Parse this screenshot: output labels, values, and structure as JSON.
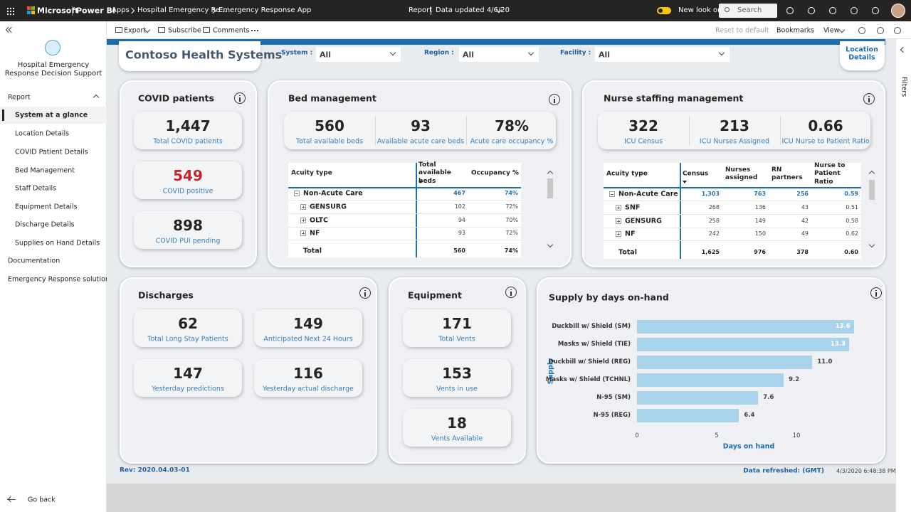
{
  "topbar": {
    "brand": "Microsoft",
    "product": "Power BI",
    "breadcrumb": [
      "Apps",
      "Hospital Emergency Re...",
      "Emergency Response App"
    ],
    "report": "Report",
    "updated": "Data updated 4/6/20",
    "new_look": "New look on",
    "search": "Search"
  },
  "toolbar": {
    "left": [
      "Export",
      "Subscribe",
      "Comments"
    ],
    "right": [
      "Reset to default",
      "Bookmarks",
      "View"
    ]
  },
  "sidebar": {
    "app_title": "Hospital Emergency Response Decision Support",
    "section": "Report",
    "pages": [
      "System at a glance",
      "Location Details",
      "COVID Patient Details",
      "Bed Management",
      "Staff Details",
      "Equipment Details",
      "Discharge Details",
      "Supplies on Hand Details"
    ],
    "links": [
      "Documentation",
      "Emergency Response solution d..."
    ],
    "back": "Go back"
  },
  "filters_pane": "Filters",
  "header": {
    "title": "Contoso Health Systems",
    "filters": [
      {
        "label": "System :",
        "value": "All"
      },
      {
        "label": "Region :",
        "value": "All"
      },
      {
        "label": "Facility :",
        "value": "All"
      }
    ],
    "button": "Location Details"
  },
  "covid": {
    "title": "COVID patients",
    "kpis": [
      {
        "value": "1,447",
        "label": "Total COVID patients"
      },
      {
        "value": "549",
        "label": "COVID positive"
      },
      {
        "value": "898",
        "label": "COVID PUI pending"
      }
    ]
  },
  "beds": {
    "title": "Bed management",
    "kpis": [
      {
        "value": "560",
        "label": "Total available beds"
      },
      {
        "value": "93",
        "label": "Available acute care beds"
      },
      {
        "value": "78%",
        "label": "Acute care occupancy %"
      }
    ],
    "table": {
      "columns": [
        "Acuity type",
        "Total available beds",
        "Occupancy %"
      ],
      "rows": [
        [
          "Non-Acute Care",
          "467",
          "74%"
        ],
        [
          "GENSURG",
          "102",
          "72%"
        ],
        [
          "OLTC",
          "94",
          "70%"
        ],
        [
          "NF",
          "93",
          "72%"
        ]
      ],
      "total": [
        "Total",
        "560",
        "74%"
      ]
    }
  },
  "nurses": {
    "title": "Nurse staffing management",
    "kpis": [
      {
        "value": "322",
        "label": "ICU Census"
      },
      {
        "value": "213",
        "label": "ICU Nurses Assigned"
      },
      {
        "value": "0.66",
        "label": "ICU Nurse to Patient Ratio"
      }
    ],
    "table": {
      "columns": [
        "Acuity type",
        "Census",
        "Nurses assigned",
        "RN partners",
        "Nurse to Patient Ratio"
      ],
      "rows": [
        [
          "Non-Acute Care",
          "1,303",
          "763",
          "256",
          "0.59"
        ],
        [
          "SNF",
          "268",
          "136",
          "43",
          "0.51"
        ],
        [
          "GENSURG",
          "258",
          "149",
          "42",
          "0.58"
        ],
        [
          "NF",
          "242",
          "150",
          "49",
          "0.62"
        ]
      ],
      "total": [
        "Total",
        "1,625",
        "976",
        "378",
        "0.60"
      ]
    }
  },
  "discharges": {
    "title": "Discharges",
    "kpis": [
      {
        "value": "62",
        "label": "Total Long Stay Patients"
      },
      {
        "value": "149",
        "label": "Anticipated Next 24 Hours"
      },
      {
        "value": "147",
        "label": "Yesterday predictions"
      },
      {
        "value": "116",
        "label": "Yesterday actual discharge"
      }
    ]
  },
  "equipment": {
    "title": "Equipment",
    "kpis": [
      {
        "value": "171",
        "label": "Total Vents"
      },
      {
        "value": "153",
        "label": "Vents in use"
      },
      {
        "value": "18",
        "label": "Vents Available"
      }
    ]
  },
  "chart_data": {
    "type": "bar",
    "orientation": "horizontal",
    "title": "Supply by days on-hand",
    "x_label": "Days on hand",
    "y_label": "Supply",
    "categories": [
      "Duckbill w/ Shield (SM)",
      "Masks w/ Shield (TIE)",
      "Duckbill w/ Shield (REG)",
      "Masks w/ Shield (TCHNL)",
      "N-95 (SM)",
      "N-95 (REG)"
    ],
    "values": [
      13.6,
      13.3,
      11.0,
      9.2,
      7.6,
      6.4
    ],
    "value_labels": [
      "13.6",
      "13.3",
      "11.0",
      "9.2",
      "7.6",
      "6.4"
    ],
    "color": "#a9d3ea",
    "xlim": [
      0,
      15
    ],
    "xticks": [
      0,
      5,
      10
    ],
    "grid": false
  },
  "footer": {
    "rev": "Rev: 2020.04.03-01",
    "refreshed": "Data refreshed: (GMT)",
    "timestamp": "4/3/2020 6:48:38 PM"
  }
}
